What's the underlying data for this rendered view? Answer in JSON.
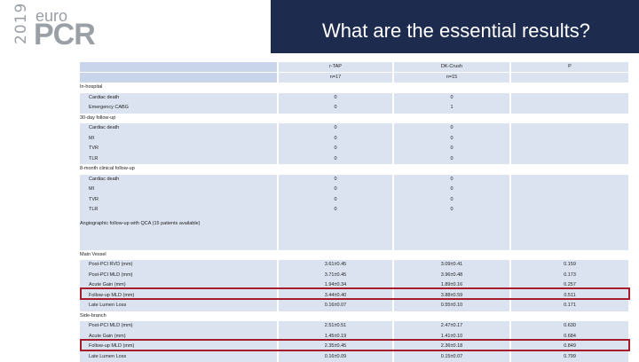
{
  "logo": {
    "year": "2019",
    "euro": "euro",
    "pcr": "PCR"
  },
  "title": "What are the essential results?",
  "columns": [
    "r-TAP",
    "DK-Crush",
    "P"
  ],
  "counts": [
    "n=17",
    "n=15",
    ""
  ],
  "rows": [
    {
      "kind": "section",
      "label": "In-hospital",
      "v": [
        "",
        "",
        ""
      ]
    },
    {
      "kind": "item",
      "label": "Cardiac death",
      "v": [
        "0",
        "0",
        ""
      ]
    },
    {
      "kind": "item",
      "label": "Emergency CABG",
      "v": [
        "0",
        "1",
        ""
      ]
    },
    {
      "kind": "section",
      "label": "30-day follow-up",
      "v": [
        "",
        "",
        ""
      ]
    },
    {
      "kind": "item",
      "label": "Cardiac death",
      "v": [
        "0",
        "0",
        ""
      ]
    },
    {
      "kind": "item",
      "label": "MI",
      "v": [
        "0",
        "0",
        ""
      ]
    },
    {
      "kind": "item",
      "label": "TVR",
      "v": [
        "0",
        "0",
        ""
      ]
    },
    {
      "kind": "item",
      "label": "TLR",
      "v": [
        "0",
        "0",
        ""
      ]
    },
    {
      "kind": "section",
      "label": "8-month clinical follow-up",
      "v": [
        "",
        "",
        ""
      ]
    },
    {
      "kind": "item",
      "label": "Cardiac death",
      "v": [
        "0",
        "0",
        ""
      ]
    },
    {
      "kind": "item",
      "label": "MI",
      "v": [
        "0",
        "0",
        ""
      ]
    },
    {
      "kind": "item",
      "label": "TVR",
      "v": [
        "0",
        "0",
        ""
      ]
    },
    {
      "kind": "item",
      "label": "TLR",
      "v": [
        "0",
        "0",
        ""
      ]
    },
    {
      "kind": "empty",
      "label": "Angiographic follow-up with QCA (15 patients available)",
      "v": [
        "",
        "",
        ""
      ]
    },
    {
      "kind": "empty",
      "label": "",
      "v": [
        "",
        "",
        ""
      ]
    },
    {
      "kind": "sub",
      "label": "Main Vessel",
      "v": [
        "",
        "",
        ""
      ]
    },
    {
      "kind": "item",
      "label": "Post-PCI RVD (mm)",
      "v": [
        "3.61±0.45",
        "3.09±0.41",
        "0.159"
      ]
    },
    {
      "kind": "item",
      "label": "Post-PCI MLD (mm)",
      "v": [
        "3.71±0.45",
        "3.96±0.48",
        "0.173"
      ]
    },
    {
      "kind": "item",
      "label": "Acute Gain (mm)",
      "v": [
        "1.94±0.34",
        "1.89±0.16",
        "0.257"
      ]
    },
    {
      "kind": "item",
      "label": "Follow-up MLD (mm)",
      "v": [
        "3.44±0.40",
        "3.88±0.59",
        "0.511"
      ]
    },
    {
      "kind": "item",
      "label": "Late Lumen Loss",
      "v": [
        "0.16±0.07",
        "0.55±0.10",
        "0.171"
      ]
    },
    {
      "kind": "section",
      "label": "Side-branch",
      "v": [
        "",
        "",
        ""
      ]
    },
    {
      "kind": "item",
      "label": "Post-PCI MLD (mm)",
      "v": [
        "2.51±0.51",
        "2.47±0.17",
        "0.630"
      ]
    },
    {
      "kind": "item",
      "label": "Acute Gain (mm)",
      "v": [
        "1.45±0.19",
        "1.41±0.10",
        "0.684"
      ]
    },
    {
      "kind": "item",
      "label": "Follow-up MLD (mm)",
      "v": [
        "2.35±0.45",
        "2.36±0.18",
        "0.849"
      ]
    },
    {
      "kind": "item",
      "label": "Late Lumen Loss",
      "v": [
        "0.16±0.09",
        "0.15±0.07",
        "0.799"
      ]
    }
  ]
}
